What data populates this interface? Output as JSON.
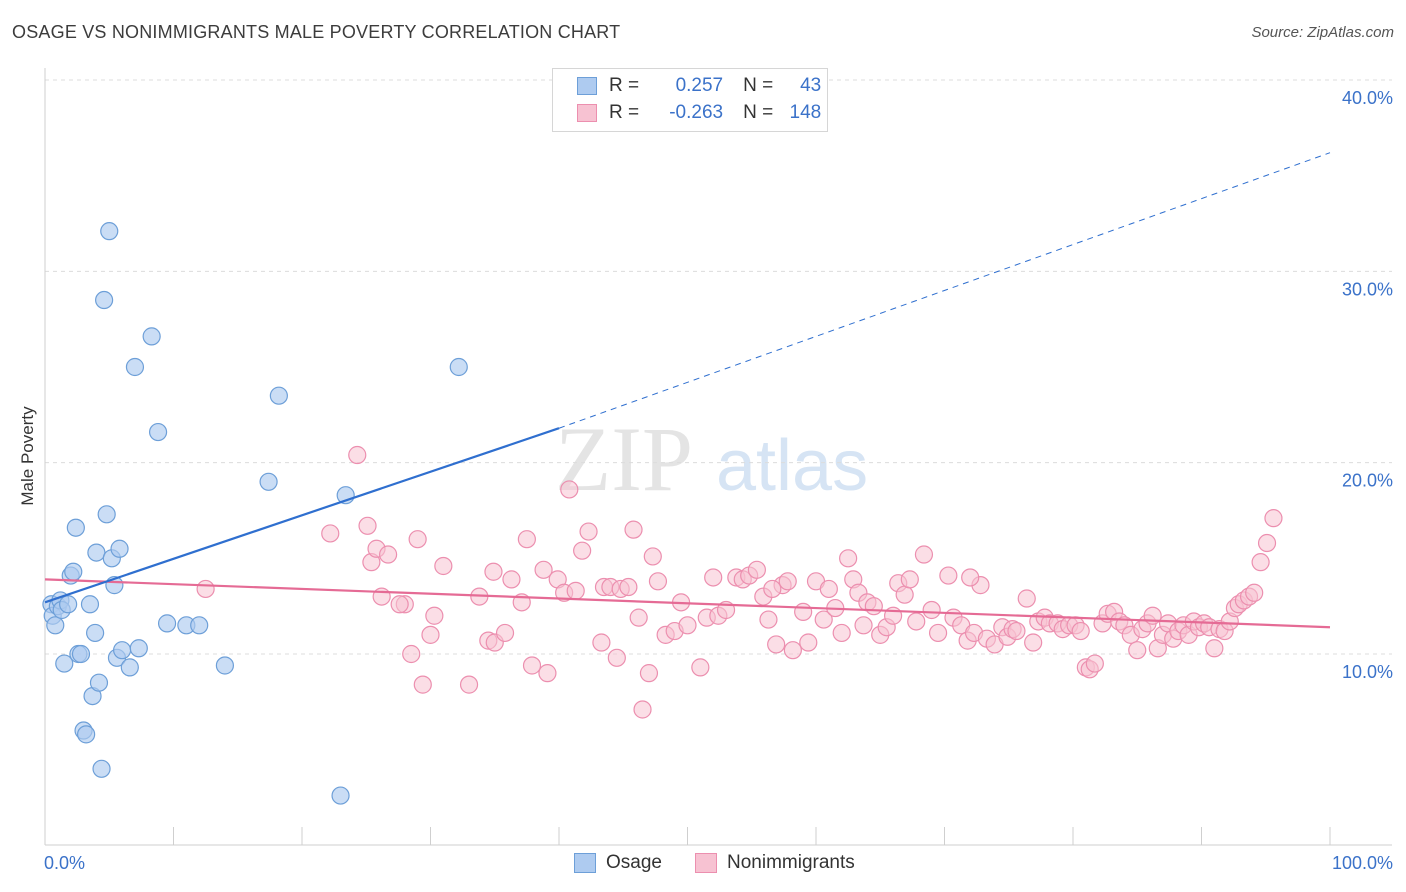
{
  "title": "OSAGE VS NONIMMIGRANTS MALE POVERTY CORRELATION CHART",
  "source": "Source: ZipAtlas.com",
  "watermark": {
    "zip": "ZIP",
    "atlas": "atlas"
  },
  "legend": {
    "rows": [
      {
        "r_label": "R =",
        "r_value": "0.257",
        "n_label": "N =",
        "n_value": "43"
      },
      {
        "r_label": "R =",
        "r_value": "-0.263",
        "n_label": "N =",
        "n_value": "148"
      }
    ]
  },
  "colors": {
    "osage_fill": "#aecbf0",
    "osage_stroke": "#6d9fd8",
    "osage_line": "#2f6fcf",
    "nonimm_fill": "#f7c2d2",
    "nonimm_stroke": "#ec8faf",
    "nonimm_line": "#e56b95",
    "axis_label": "#3b72c9",
    "grid": "#dcdcdc"
  },
  "chart_data": {
    "type": "scatter",
    "title": "OSAGE VS NONIMMIGRANTS MALE POVERTY CORRELATION CHART",
    "xlabel": "",
    "ylabel": "Male Poverty",
    "xlim": [
      0,
      100
    ],
    "ylim": [
      0,
      42
    ],
    "x_tick_labels": [
      "0.0%",
      "100.0%"
    ],
    "y_ticks": [
      10,
      20,
      30,
      40
    ],
    "y_tick_labels": [
      "10.0%",
      "20.0%",
      "30.0%",
      "40.0%"
    ],
    "grid": true,
    "legend_position": "bottom",
    "series": [
      {
        "name": "Osage",
        "r": 0.257,
        "n": 43,
        "trend": {
          "x_start": 0,
          "y_start": 12.7,
          "x_solid_end": 40,
          "y_solid_end": 21.8,
          "x_dash_end": 100,
          "y_dash_end": 36.2
        },
        "points": [
          [
            0.5,
            12.6
          ],
          [
            0.6,
            12.0
          ],
          [
            0.8,
            11.5
          ],
          [
            1.0,
            12.5
          ],
          [
            1.2,
            12.8
          ],
          [
            1.3,
            12.3
          ],
          [
            1.5,
            9.5
          ],
          [
            1.8,
            12.6
          ],
          [
            2.0,
            14.1
          ],
          [
            2.2,
            14.3
          ],
          [
            2.4,
            16.6
          ],
          [
            2.6,
            10.0
          ],
          [
            2.8,
            10.0
          ],
          [
            3.0,
            6.0
          ],
          [
            3.2,
            5.8
          ],
          [
            3.5,
            12.6
          ],
          [
            3.7,
            7.8
          ],
          [
            3.9,
            11.1
          ],
          [
            4.0,
            15.3
          ],
          [
            4.2,
            8.5
          ],
          [
            4.4,
            4.0
          ],
          [
            4.6,
            28.5
          ],
          [
            4.8,
            17.3
          ],
          [
            5.0,
            32.1
          ],
          [
            5.2,
            15.0
          ],
          [
            5.4,
            13.6
          ],
          [
            5.6,
            9.8
          ],
          [
            5.8,
            15.5
          ],
          [
            6.0,
            10.2
          ],
          [
            6.6,
            9.3
          ],
          [
            7.0,
            25.0
          ],
          [
            7.3,
            10.3
          ],
          [
            8.3,
            26.6
          ],
          [
            8.8,
            21.6
          ],
          [
            9.5,
            11.6
          ],
          [
            11.0,
            11.5
          ],
          [
            12.0,
            11.5
          ],
          [
            14.0,
            9.4
          ],
          [
            17.4,
            19.0
          ],
          [
            18.2,
            23.5
          ],
          [
            23.0,
            2.6
          ],
          [
            23.4,
            18.3
          ],
          [
            32.2,
            25.0
          ]
        ]
      },
      {
        "name": "Nonimmigrants",
        "r": -0.263,
        "n": 148,
        "trend": {
          "x_start": 0,
          "y_start": 13.9,
          "x_end": 100,
          "y_end": 11.4
        },
        "points": [
          [
            12.5,
            13.4
          ],
          [
            22.2,
            16.3
          ],
          [
            24.3,
            20.4
          ],
          [
            25.1,
            16.7
          ],
          [
            25.4,
            14.8
          ],
          [
            25.8,
            15.5
          ],
          [
            26.2,
            13.0
          ],
          [
            26.7,
            15.2
          ],
          [
            28.0,
            12.6
          ],
          [
            28.5,
            10.0
          ],
          [
            29.0,
            16.0
          ],
          [
            29.4,
            8.4
          ],
          [
            30.0,
            11.0
          ],
          [
            30.3,
            12.0
          ],
          [
            31.0,
            14.6
          ],
          [
            33.0,
            8.4
          ],
          [
            33.8,
            13.0
          ],
          [
            34.5,
            10.7
          ],
          [
            35.0,
            10.6
          ],
          [
            35.8,
            11.1
          ],
          [
            36.3,
            13.9
          ],
          [
            37.1,
            12.7
          ],
          [
            37.5,
            16.0
          ],
          [
            37.9,
            9.4
          ],
          [
            38.8,
            14.4
          ],
          [
            39.1,
            9.0
          ],
          [
            39.9,
            13.9
          ],
          [
            40.4,
            13.2
          ],
          [
            40.8,
            18.6
          ],
          [
            41.3,
            13.3
          ],
          [
            41.8,
            15.4
          ],
          [
            42.3,
            16.4
          ],
          [
            43.3,
            10.6
          ],
          [
            43.5,
            13.5
          ],
          [
            44.0,
            13.5
          ],
          [
            44.5,
            9.8
          ],
          [
            44.8,
            13.4
          ],
          [
            45.4,
            13.5
          ],
          [
            45.8,
            16.5
          ],
          [
            46.2,
            11.9
          ],
          [
            46.5,
            7.1
          ],
          [
            47.0,
            9.0
          ],
          [
            47.3,
            15.1
          ],
          [
            47.7,
            13.8
          ],
          [
            48.3,
            11.0
          ],
          [
            49.0,
            11.2
          ],
          [
            49.5,
            12.7
          ],
          [
            50.0,
            11.5
          ],
          [
            51.0,
            9.3
          ],
          [
            51.5,
            11.9
          ],
          [
            52.0,
            14.0
          ],
          [
            52.4,
            12.0
          ],
          [
            53.0,
            12.3
          ],
          [
            53.8,
            14.0
          ],
          [
            54.3,
            13.9
          ],
          [
            54.8,
            14.1
          ],
          [
            55.4,
            14.4
          ],
          [
            55.9,
            13.0
          ],
          [
            56.3,
            11.8
          ],
          [
            56.9,
            10.5
          ],
          [
            57.4,
            13.6
          ],
          [
            57.8,
            13.8
          ],
          [
            58.2,
            10.2
          ],
          [
            59.0,
            12.2
          ],
          [
            59.4,
            10.6
          ],
          [
            60.0,
            13.8
          ],
          [
            60.6,
            11.8
          ],
          [
            61.0,
            13.4
          ],
          [
            61.5,
            12.4
          ],
          [
            62.0,
            11.1
          ],
          [
            62.5,
            15.0
          ],
          [
            62.9,
            13.9
          ],
          [
            63.3,
            13.2
          ],
          [
            63.7,
            11.5
          ],
          [
            64.0,
            12.7
          ],
          [
            64.5,
            12.5
          ],
          [
            65.0,
            11.0
          ],
          [
            65.5,
            11.4
          ],
          [
            66.0,
            12.0
          ],
          [
            66.4,
            13.7
          ],
          [
            66.9,
            13.1
          ],
          [
            67.3,
            13.9
          ],
          [
            67.8,
            11.7
          ],
          [
            68.4,
            15.2
          ],
          [
            69.0,
            12.3
          ],
          [
            69.5,
            11.1
          ],
          [
            70.3,
            14.1
          ],
          [
            70.7,
            11.9
          ],
          [
            71.3,
            11.5
          ],
          [
            71.8,
            10.7
          ],
          [
            72.3,
            11.1
          ],
          [
            72.8,
            13.6
          ],
          [
            73.3,
            10.8
          ],
          [
            73.9,
            10.5
          ],
          [
            74.5,
            11.4
          ],
          [
            74.9,
            10.9
          ],
          [
            75.3,
            11.3
          ],
          [
            75.6,
            11.2
          ],
          [
            76.4,
            12.9
          ],
          [
            76.9,
            10.6
          ],
          [
            77.3,
            11.7
          ],
          [
            77.8,
            11.9
          ],
          [
            78.2,
            11.6
          ],
          [
            78.8,
            11.6
          ],
          [
            79.2,
            11.3
          ],
          [
            79.7,
            11.5
          ],
          [
            80.2,
            11.5
          ],
          [
            80.6,
            11.2
          ],
          [
            81.0,
            9.3
          ],
          [
            81.3,
            9.2
          ],
          [
            81.7,
            9.5
          ],
          [
            82.3,
            11.6
          ],
          [
            82.7,
            12.1
          ],
          [
            83.2,
            12.2
          ],
          [
            83.6,
            11.7
          ],
          [
            84.0,
            11.5
          ],
          [
            84.5,
            11.0
          ],
          [
            85.0,
            10.2
          ],
          [
            85.4,
            11.3
          ],
          [
            85.8,
            11.6
          ],
          [
            86.2,
            12.0
          ],
          [
            86.6,
            10.3
          ],
          [
            87.0,
            11.0
          ],
          [
            87.4,
            11.6
          ],
          [
            87.8,
            10.8
          ],
          [
            88.2,
            11.2
          ],
          [
            88.6,
            11.5
          ],
          [
            89.0,
            11.0
          ],
          [
            89.4,
            11.7
          ],
          [
            89.8,
            11.4
          ],
          [
            90.2,
            11.6
          ],
          [
            90.6,
            11.4
          ],
          [
            91.0,
            10.3
          ],
          [
            91.4,
            11.3
          ],
          [
            91.8,
            11.2
          ],
          [
            92.2,
            11.7
          ],
          [
            92.6,
            12.4
          ],
          [
            92.9,
            12.6
          ],
          [
            93.3,
            12.8
          ],
          [
            93.7,
            13.0
          ],
          [
            94.1,
            13.2
          ],
          [
            94.6,
            14.8
          ],
          [
            95.1,
            15.8
          ],
          [
            95.6,
            17.1
          ],
          [
            72.0,
            14.0
          ],
          [
            56.6,
            13.4
          ],
          [
            34.9,
            14.3
          ],
          [
            27.6,
            12.6
          ]
        ]
      }
    ]
  }
}
